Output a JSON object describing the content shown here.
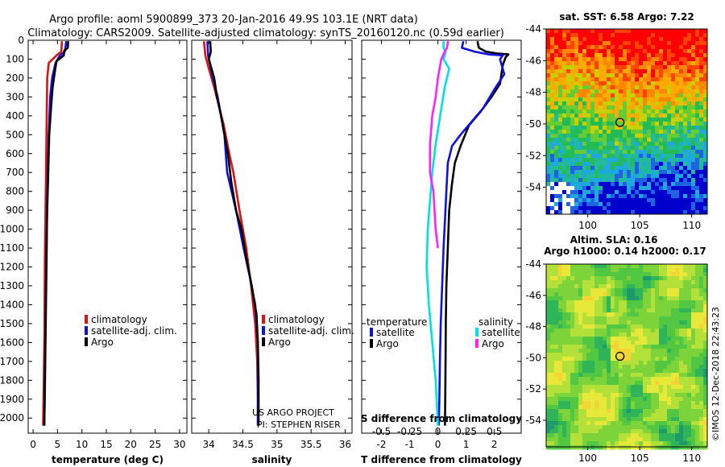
{
  "header": {
    "title_line1": "Argo profile: aoml 5900899_373 20-Jan-2016 49.9S 103.1E (NRT data)",
    "title_line2": "Climatology: CARS2009. Satellite-adjusted climatology: synTS_20160120.nc (0.59d earlier)"
  },
  "colors": {
    "climatology": "#e01010",
    "satellite_adj": "#1010e0",
    "argo": "#000000",
    "salinity_satellite": "#00e0e0",
    "salinity_argo": "#ff20ff"
  },
  "credits": {
    "project": "US ARGO PROJECT",
    "pi": "PI: STEPHEN RISER",
    "imos": "©IMOS 12-Dec-2018 22:43:23"
  },
  "chart_data": [
    {
      "id": "temperature",
      "type": "line",
      "xlabel": "temperature (deg C)",
      "ylabel": "",
      "xlim": [
        -1,
        31.5
      ],
      "ylim": [
        2080,
        0
      ],
      "xticks": [
        "0",
        "5",
        "10",
        "15",
        "20",
        "25",
        "30"
      ],
      "xtick_values": [
        0,
        5,
        10,
        15,
        20,
        25,
        30
      ],
      "yticks": [
        0,
        100,
        200,
        300,
        400,
        500,
        600,
        700,
        800,
        900,
        1000,
        1100,
        1200,
        1300,
        1400,
        1500,
        1600,
        1700,
        1800,
        1900,
        2000
      ],
      "legend": [
        {
          "label": "climatology",
          "color_key": "climatology"
        },
        {
          "label": "satellite-adj. clim.",
          "color_key": "satellite_adj"
        },
        {
          "label": "Argo",
          "color_key": "argo"
        }
      ],
      "series": [
        {
          "name": "climatology",
          "color_key": "climatology",
          "points": [
            [
              5.9,
              5
            ],
            [
              5.8,
              60
            ],
            [
              4.8,
              80
            ],
            [
              3.2,
              120
            ],
            [
              2.9,
              200
            ],
            [
              2.8,
              400
            ],
            [
              2.7,
              600
            ],
            [
              2.6,
              800
            ],
            [
              2.5,
              1000
            ],
            [
              2.4,
              1200
            ],
            [
              2.35,
              1500
            ],
            [
              2.2,
              1800
            ],
            [
              2.05,
              2040
            ]
          ]
        },
        {
          "name": "satellite-adj. clim.",
          "color_key": "satellite_adj",
          "points": [
            [
              6.8,
              5
            ],
            [
              6.5,
              60
            ],
            [
              5.5,
              80
            ],
            [
              4.6,
              120
            ],
            [
              3.9,
              200
            ],
            [
              3.5,
              300
            ],
            [
              3.2,
              500
            ],
            [
              3,
              700
            ],
            [
              2.85,
              900
            ],
            [
              2.8,
              1100
            ],
            [
              2.7,
              1300
            ],
            [
              2.6,
              1500
            ],
            [
              2.5,
              1700
            ],
            [
              2.4,
              1900
            ],
            [
              2.3,
              2040
            ]
          ]
        },
        {
          "name": "Argo",
          "color_key": "argo",
          "points": [
            [
              7.2,
              5
            ],
            [
              7.1,
              40
            ],
            [
              6.4,
              55
            ],
            [
              6.3,
              80
            ],
            [
              4.8,
              110
            ],
            [
              4.5,
              160
            ],
            [
              4,
              250
            ],
            [
              3.7,
              350
            ],
            [
              3.3,
              500
            ],
            [
              3.1,
              700
            ],
            [
              2.9,
              900
            ],
            [
              2.75,
              1100
            ],
            [
              2.65,
              1300
            ],
            [
              2.55,
              1500
            ],
            [
              2.45,
              1700
            ],
            [
              2.35,
              1900
            ],
            [
              2.3,
              2040
            ]
          ]
        }
      ]
    },
    {
      "id": "salinity",
      "type": "line",
      "xlabel": "salinity",
      "xlim": [
        33.75,
        36.1
      ],
      "ylim": [
        2080,
        0
      ],
      "xticks": [
        "34",
        "34.5",
        "35",
        "35.5",
        "36"
      ],
      "xtick_values": [
        34,
        34.5,
        35,
        35.5,
        36
      ],
      "legend": [
        {
          "label": "climatology",
          "color_key": "climatology"
        },
        {
          "label": "satellite-adj. clim.",
          "color_key": "satellite_adj"
        },
        {
          "label": "Argo",
          "color_key": "argo"
        }
      ],
      "series": [
        {
          "name": "climatology",
          "color_key": "climatology",
          "points": [
            [
              33.93,
              5
            ],
            [
              33.95,
              80
            ],
            [
              34.0,
              150
            ],
            [
              34.08,
              250
            ],
            [
              34.15,
              350
            ],
            [
              34.22,
              450
            ],
            [
              34.3,
              600
            ],
            [
              34.36,
              700
            ],
            [
              34.45,
              900
            ],
            [
              34.55,
              1100
            ],
            [
              34.62,
              1300
            ],
            [
              34.68,
              1500
            ],
            [
              34.71,
              1700
            ],
            [
              34.72,
              1900
            ],
            [
              34.72,
              2040
            ]
          ]
        },
        {
          "name": "satellite-adj. clim.",
          "color_key": "satellite_adj",
          "points": [
            [
              33.98,
              5
            ],
            [
              33.99,
              80
            ],
            [
              34.06,
              200
            ],
            [
              34.13,
              300
            ],
            [
              34.18,
              400
            ],
            [
              34.23,
              500
            ],
            [
              34.27,
              700
            ],
            [
              34.4,
              900
            ],
            [
              34.51,
              1100
            ],
            [
              34.6,
              1250
            ],
            [
              34.68,
              1400
            ],
            [
              34.72,
              1600
            ],
            [
              34.72,
              1800
            ],
            [
              34.72,
              2040
            ]
          ]
        },
        {
          "name": "Argo",
          "color_key": "argo",
          "points": [
            [
              34.02,
              5
            ],
            [
              34.03,
              60
            ],
            [
              34.0,
              100
            ],
            [
              34.08,
              200
            ],
            [
              34.12,
              300
            ],
            [
              34.18,
              400
            ],
            [
              34.23,
              500
            ],
            [
              34.28,
              600
            ],
            [
              34.33,
              750
            ],
            [
              34.4,
              900
            ],
            [
              34.48,
              1000
            ],
            [
              34.55,
              1150
            ],
            [
              34.63,
              1300
            ],
            [
              34.7,
              1450
            ],
            [
              34.72,
              1600
            ],
            [
              34.73,
              1800
            ],
            [
              34.73,
              2040
            ]
          ]
        }
      ]
    },
    {
      "id": "difference",
      "type": "line",
      "xlabel": "T difference from climatology",
      "xlabel_top": "S difference from climatology",
      "xlim": [
        -2.7,
        2.95
      ],
      "ylim": [
        2080,
        0
      ],
      "xticks": [
        "-2",
        "-1",
        "0",
        "1",
        "2"
      ],
      "xtick_values": [
        -2,
        -1,
        0,
        1,
        2
      ],
      "s_ticks": [
        "-0.5",
        "-0.25",
        "0",
        "0.25",
        "0.5"
      ],
      "s_tick_values": [
        -0.5,
        -0.25,
        0,
        0.25,
        0.5
      ],
      "s_scale": 4,
      "legend_temperature_title": "temperature",
      "legend_salinity_title": "salinity",
      "legend": [
        {
          "label": "satellite",
          "color_key": "satellite_adj",
          "group": "temperature"
        },
        {
          "label": "Argo",
          "color_key": "argo",
          "group": "temperature"
        },
        {
          "label": "satellite",
          "color_key": "salinity_satellite",
          "group": "salinity"
        },
        {
          "label": "Argo",
          "color_key": "salinity_argo",
          "group": "salinity"
        }
      ],
      "series": [
        {
          "name": "T Argo",
          "color_key": "argo",
          "points": [
            [
              1.4,
              5
            ],
            [
              1.45,
              40
            ],
            [
              1.7,
              60
            ],
            [
              2.1,
              70
            ],
            [
              2.5,
              75
            ],
            [
              2.4,
              90
            ],
            [
              2.3,
              130
            ],
            [
              2.2,
              230
            ],
            [
              1.9,
              300
            ],
            [
              1.5,
              380
            ],
            [
              1.1,
              450
            ],
            [
              0.8,
              560
            ],
            [
              0.6,
              650
            ],
            [
              0.5,
              760
            ],
            [
              0.4,
              900
            ],
            [
              0.35,
              1100
            ],
            [
              0.3,
              1300
            ],
            [
              0.28,
              1500
            ],
            [
              0.27,
              1700
            ],
            [
              0.26,
              1900
            ],
            [
              0.25,
              2040
            ]
          ]
        },
        {
          "name": "T satellite",
          "color_key": "satellite_adj",
          "points": [
            [
              0.9,
              5
            ],
            [
              0.85,
              40
            ],
            [
              1.3,
              60
            ],
            [
              1.8,
              75
            ],
            [
              2.3,
              80
            ],
            [
              2.2,
              100
            ],
            [
              2.35,
              180
            ],
            [
              2.0,
              260
            ],
            [
              1.6,
              360
            ],
            [
              1.2,
              430
            ],
            [
              0.8,
              500
            ],
            [
              0.5,
              560
            ],
            [
              0.35,
              650
            ],
            [
              0.3,
              800
            ],
            [
              0.25,
              950
            ],
            [
              0.2,
              1100
            ],
            [
              0.15,
              1300
            ],
            [
              0.1,
              1500
            ],
            [
              0.07,
              1700
            ],
            [
              0.05,
              1900
            ],
            [
              0.03,
              2040
            ]
          ]
        },
        {
          "name": "S satellite",
          "color_key": "salinity_satellite",
          "points": [
            [
              0.05,
              5
            ],
            [
              0.05,
              40
            ],
            [
              0.07,
              60
            ],
            [
              0.05,
              100
            ],
            [
              0.1,
              150
            ],
            [
              0.06,
              250
            ],
            [
              0.02,
              400
            ],
            [
              -0.02,
              550
            ],
            [
              -0.05,
              700
            ],
            [
              -0.07,
              850
            ],
            [
              -0.09,
              1000
            ],
            [
              -0.1,
              1200
            ],
            [
              -0.08,
              1400
            ],
            [
              -0.05,
              1600
            ],
            [
              -0.02,
              1800
            ],
            [
              0,
              2040
            ]
          ]
        },
        {
          "name": "S Argo",
          "color_key": "salinity_argo",
          "points": [
            [
              0.09,
              5
            ],
            [
              0.08,
              40
            ],
            [
              0.06,
              60
            ],
            [
              0.03,
              100
            ],
            [
              0.0,
              200
            ],
            [
              -0.02,
              300
            ],
            [
              -0.05,
              400
            ],
            [
              -0.07,
              550
            ],
            [
              -0.07,
              700
            ],
            [
              -0.04,
              800
            ],
            [
              -0.02,
              1000
            ],
            [
              0,
              1100
            ]
          ]
        }
      ]
    },
    {
      "id": "sst_map",
      "type": "heatmap",
      "title": "sat. SST: 6.58 Argo: 7.22",
      "xlim": [
        96,
        111.5
      ],
      "ylim": [
        -55.7,
        -44
      ],
      "xticks": [
        "100",
        "105",
        "110"
      ],
      "xtick_values": [
        100,
        105,
        110
      ],
      "yticks": [
        "-44",
        "-46",
        "-48",
        "-50",
        "-52",
        "-54"
      ],
      "ytick_values": [
        -44,
        -46,
        -48,
        -50,
        -52,
        -54
      ],
      "marker": {
        "lon": 103.1,
        "lat": -49.9
      }
    },
    {
      "id": "sla_map",
      "type": "heatmap",
      "title_line1": "Altim. SLA: 0.16",
      "title_line2": "Argo h1000: 0.14 h2000: 0.17",
      "xlim": [
        96,
        111.5
      ],
      "ylim": [
        -55.7,
        -44
      ],
      "xticks": [
        "100",
        "105",
        "110"
      ],
      "xtick_values": [
        100,
        105,
        110
      ],
      "yticks": [
        "-44",
        "-46",
        "-48",
        "-50",
        "-52",
        "-54"
      ],
      "ytick_values": [
        -44,
        -46,
        -48,
        -50,
        -52,
        -54
      ],
      "marker": {
        "lon": 103.1,
        "lat": -49.9
      }
    }
  ]
}
